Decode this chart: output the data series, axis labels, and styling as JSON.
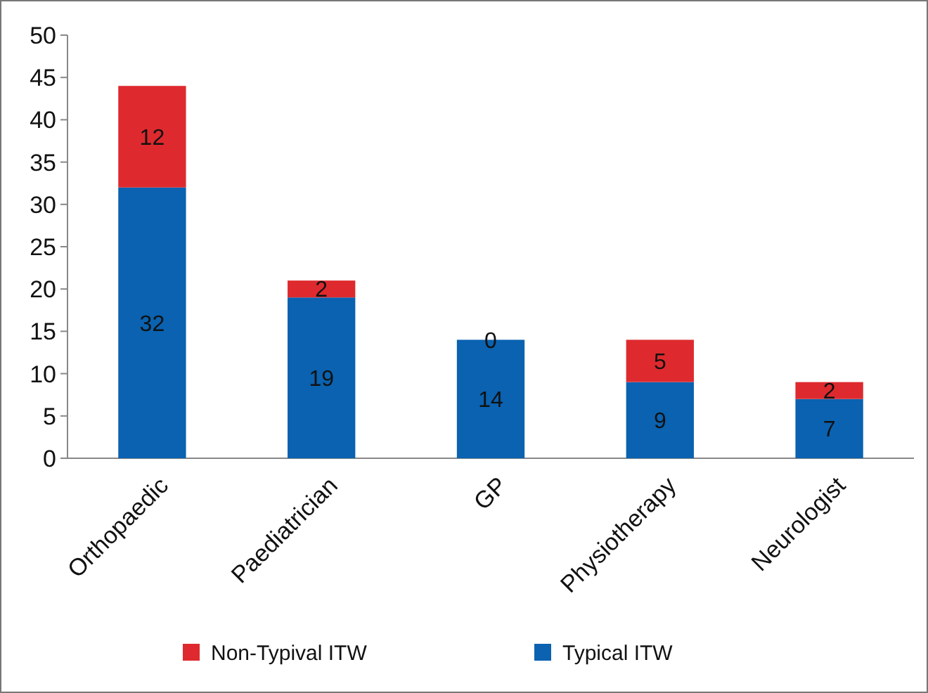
{
  "chart_data": {
    "type": "bar",
    "stacked": true,
    "categories": [
      "Orthopaedic",
      "Paediatrician",
      "GP",
      "Physiotherapy",
      "Neurologist"
    ],
    "series": [
      {
        "name": "Typical ITW",
        "color": "#0a62b0",
        "values": [
          32,
          19,
          14,
          9,
          7
        ]
      },
      {
        "name": "Non-Typival ITW",
        "color": "#de2a2e",
        "values": [
          12,
          2,
          0,
          5,
          2
        ]
      }
    ],
    "ylim": [
      0,
      50
    ],
    "yticks": [
      0,
      5,
      10,
      15,
      20,
      25,
      30,
      35,
      40,
      45,
      50
    ],
    "data_labels": true,
    "legend": "bottom",
    "grid": false
  }
}
